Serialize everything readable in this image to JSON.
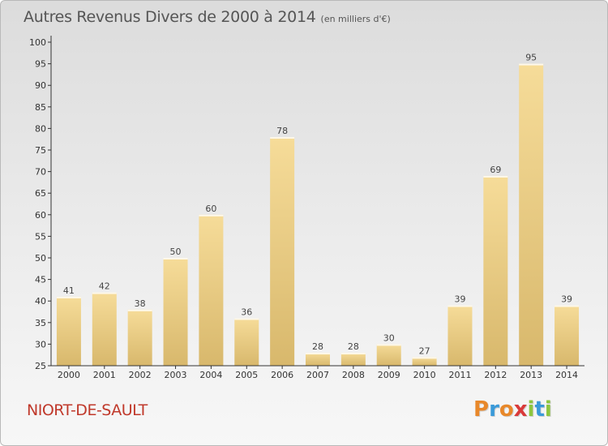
{
  "chart_data": {
    "type": "bar",
    "title": "Autres Revenus Divers de 2000 à 2014",
    "subtitle": "(en milliers d'€)",
    "categories": [
      "2000",
      "2001",
      "2002",
      "2003",
      "2004",
      "2005",
      "2006",
      "2007",
      "2008",
      "2009",
      "2010",
      "2011",
      "2012",
      "2013",
      "2014"
    ],
    "values": [
      41,
      42,
      38,
      50,
      60,
      36,
      78,
      28,
      28,
      30,
      27,
      39,
      69,
      95,
      39
    ],
    "ylim": [
      25,
      100
    ],
    "yticks": [
      25,
      30,
      35,
      40,
      45,
      50,
      55,
      60,
      65,
      70,
      75,
      80,
      85,
      90,
      95,
      100
    ],
    "grid": false,
    "data_labels": true,
    "bar_color_light": "#f6dc99",
    "bar_color_dark": "#d8b86c"
  },
  "footer": {
    "commune": "NIORT-DE-SAULT",
    "logo_letters": [
      "P",
      "r",
      "o",
      "x",
      "i",
      "t",
      "i"
    ],
    "logo_colors": [
      "#e8882a",
      "#3a9ad9",
      "#e8882a",
      "#d93a3a",
      "#8dc63f",
      "#3a9ad9",
      "#8dc63f"
    ]
  },
  "colors": {
    "title_text": "#555555",
    "commune_text": "#c0392b",
    "axis": "#333333"
  }
}
